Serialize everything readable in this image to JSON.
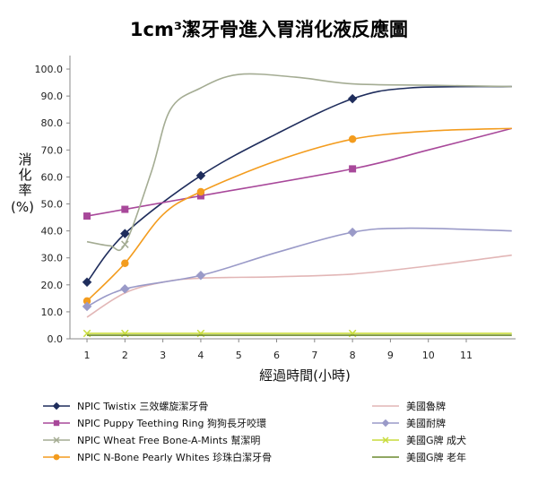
{
  "chart_data": {
    "type": "line",
    "title": "1cm³潔牙骨進入胃消化液反應圖",
    "xlabel": "經過時間(小時)",
    "ylabel": [
      "消",
      "化",
      "率",
      "(%)"
    ],
    "xlim": [
      0.55,
      12.3
    ],
    "ylim": [
      0,
      105
    ],
    "x_ticks": [
      1,
      2,
      3,
      4,
      5,
      6,
      7,
      8,
      9,
      10,
      11
    ],
    "y_ticks": [
      "0.0",
      "10.0",
      "20.0",
      "30.0",
      "40.0",
      "50.0",
      "60.0",
      "70.0",
      "80.0",
      "90.0",
      "100.0"
    ],
    "grid": false,
    "legend_position": "bottom",
    "series": [
      {
        "name": "NPIC Twistix 三效螺旋潔牙骨",
        "color": "#1f2d5c",
        "marker": "diamond",
        "marker_fill": "#1f2d5c",
        "markers": [
          {
            "x": 1,
            "y": 21
          },
          {
            "x": 2,
            "y": 39
          },
          {
            "x": 4,
            "y": 60.5
          },
          {
            "x": 8,
            "y": 89
          }
        ],
        "points": [
          {
            "x": 1,
            "y": 21
          },
          {
            "x": 2,
            "y": 39
          },
          {
            "x": 4,
            "y": 60.5
          },
          {
            "x": 6,
            "y": 76
          },
          {
            "x": 8,
            "y": 89
          },
          {
            "x": 9.5,
            "y": 93
          },
          {
            "x": 12.2,
            "y": 93.5
          }
        ]
      },
      {
        "name": "NPIC Puppy Teething Ring 狗狗長牙咬環",
        "color": "#a8489a",
        "marker": "square",
        "marker_fill": "#a8489a",
        "markers": [
          {
            "x": 1,
            "y": 45.5
          },
          {
            "x": 2,
            "y": 48
          },
          {
            "x": 4,
            "y": 53
          },
          {
            "x": 8,
            "y": 63
          }
        ],
        "points": [
          {
            "x": 1,
            "y": 45.5
          },
          {
            "x": 2,
            "y": 48
          },
          {
            "x": 4,
            "y": 53
          },
          {
            "x": 8,
            "y": 63
          },
          {
            "x": 10,
            "y": 70
          },
          {
            "x": 12.2,
            "y": 78
          }
        ]
      },
      {
        "name": "NPIC Wheat Free Bone-A-Mints 幫潔明",
        "color": "#a4ac93",
        "marker": "cross",
        "marker_fill": "#a4ac93",
        "markers": [
          {
            "x": 2,
            "y": 35
          }
        ],
        "points": [
          {
            "x": 1,
            "y": 36
          },
          {
            "x": 1.6,
            "y": 34.5
          },
          {
            "x": 2,
            "y": 35
          },
          {
            "x": 2.7,
            "y": 62
          },
          {
            "x": 3.2,
            "y": 85
          },
          {
            "x": 4,
            "y": 93
          },
          {
            "x": 5,
            "y": 98
          },
          {
            "x": 6.5,
            "y": 97
          },
          {
            "x": 8,
            "y": 94.5
          },
          {
            "x": 10,
            "y": 94
          },
          {
            "x": 12.2,
            "y": 93.5
          }
        ]
      },
      {
        "name": "NPIC N-Bone Pearly Whites 珍珠白潔牙骨",
        "color": "#f39c1e",
        "marker": "circle",
        "marker_fill": "#f39c1e",
        "markers": [
          {
            "x": 1,
            "y": 14
          },
          {
            "x": 2,
            "y": 28
          },
          {
            "x": 4,
            "y": 54.5
          },
          {
            "x": 8,
            "y": 74
          }
        ],
        "points": [
          {
            "x": 1,
            "y": 14
          },
          {
            "x": 2,
            "y": 28
          },
          {
            "x": 3,
            "y": 46
          },
          {
            "x": 4,
            "y": 54.5
          },
          {
            "x": 6,
            "y": 66
          },
          {
            "x": 8,
            "y": 74
          },
          {
            "x": 10,
            "y": 77
          },
          {
            "x": 12.2,
            "y": 78
          }
        ]
      },
      {
        "name": "美國魯牌",
        "color": "#e2b6b6",
        "marker": "none",
        "marker_fill": "#e2b6b6",
        "markers": [],
        "points": [
          {
            "x": 1,
            "y": 8
          },
          {
            "x": 2,
            "y": 17
          },
          {
            "x": 3,
            "y": 21
          },
          {
            "x": 4,
            "y": 22.5
          },
          {
            "x": 6,
            "y": 23
          },
          {
            "x": 8,
            "y": 24
          },
          {
            "x": 10,
            "y": 27
          },
          {
            "x": 12.2,
            "y": 31
          }
        ]
      },
      {
        "name": "美國耐牌",
        "color": "#9a9ac8",
        "marker": "diamond",
        "marker_fill": "#9a9ac8",
        "markers": [
          {
            "x": 1,
            "y": 12
          },
          {
            "x": 2,
            "y": 18.5
          },
          {
            "x": 4,
            "y": 23.5
          },
          {
            "x": 8,
            "y": 39.5
          }
        ],
        "points": [
          {
            "x": 1,
            "y": 12
          },
          {
            "x": 2,
            "y": 18.5
          },
          {
            "x": 4,
            "y": 23.5
          },
          {
            "x": 6,
            "y": 32
          },
          {
            "x": 8,
            "y": 39.5
          },
          {
            "x": 9.5,
            "y": 41
          },
          {
            "x": 12.2,
            "y": 40
          }
        ]
      },
      {
        "name": "美國G牌 成犬",
        "color": "#c8dc3c",
        "marker": "cross",
        "marker_fill": "#c8dc3c",
        "markers": [
          {
            "x": 1,
            "y": 2
          },
          {
            "x": 2,
            "y": 2
          },
          {
            "x": 4,
            "y": 2
          },
          {
            "x": 8,
            "y": 2
          }
        ],
        "points": [
          {
            "x": 1,
            "y": 2
          },
          {
            "x": 12.2,
            "y": 2
          }
        ]
      },
      {
        "name": "美國G牌 老年",
        "color": "#6c8a2e",
        "marker": "none",
        "marker_fill": "#6c8a2e",
        "markers": [],
        "points": [
          {
            "x": 1,
            "y": 1.3
          },
          {
            "x": 12.2,
            "y": 1.3
          }
        ]
      }
    ],
    "legend_layout": [
      {
        "series": 0,
        "col": 0,
        "row": 0
      },
      {
        "series": 1,
        "col": 0,
        "row": 1
      },
      {
        "series": 2,
        "col": 0,
        "row": 2
      },
      {
        "series": 3,
        "col": 0,
        "row": 3
      },
      {
        "series": 4,
        "col": 1,
        "row": 0
      },
      {
        "series": 5,
        "col": 1,
        "row": 1
      },
      {
        "series": 6,
        "col": 1,
        "row": 2
      },
      {
        "series": 7,
        "col": 1,
        "row": 3
      }
    ]
  }
}
